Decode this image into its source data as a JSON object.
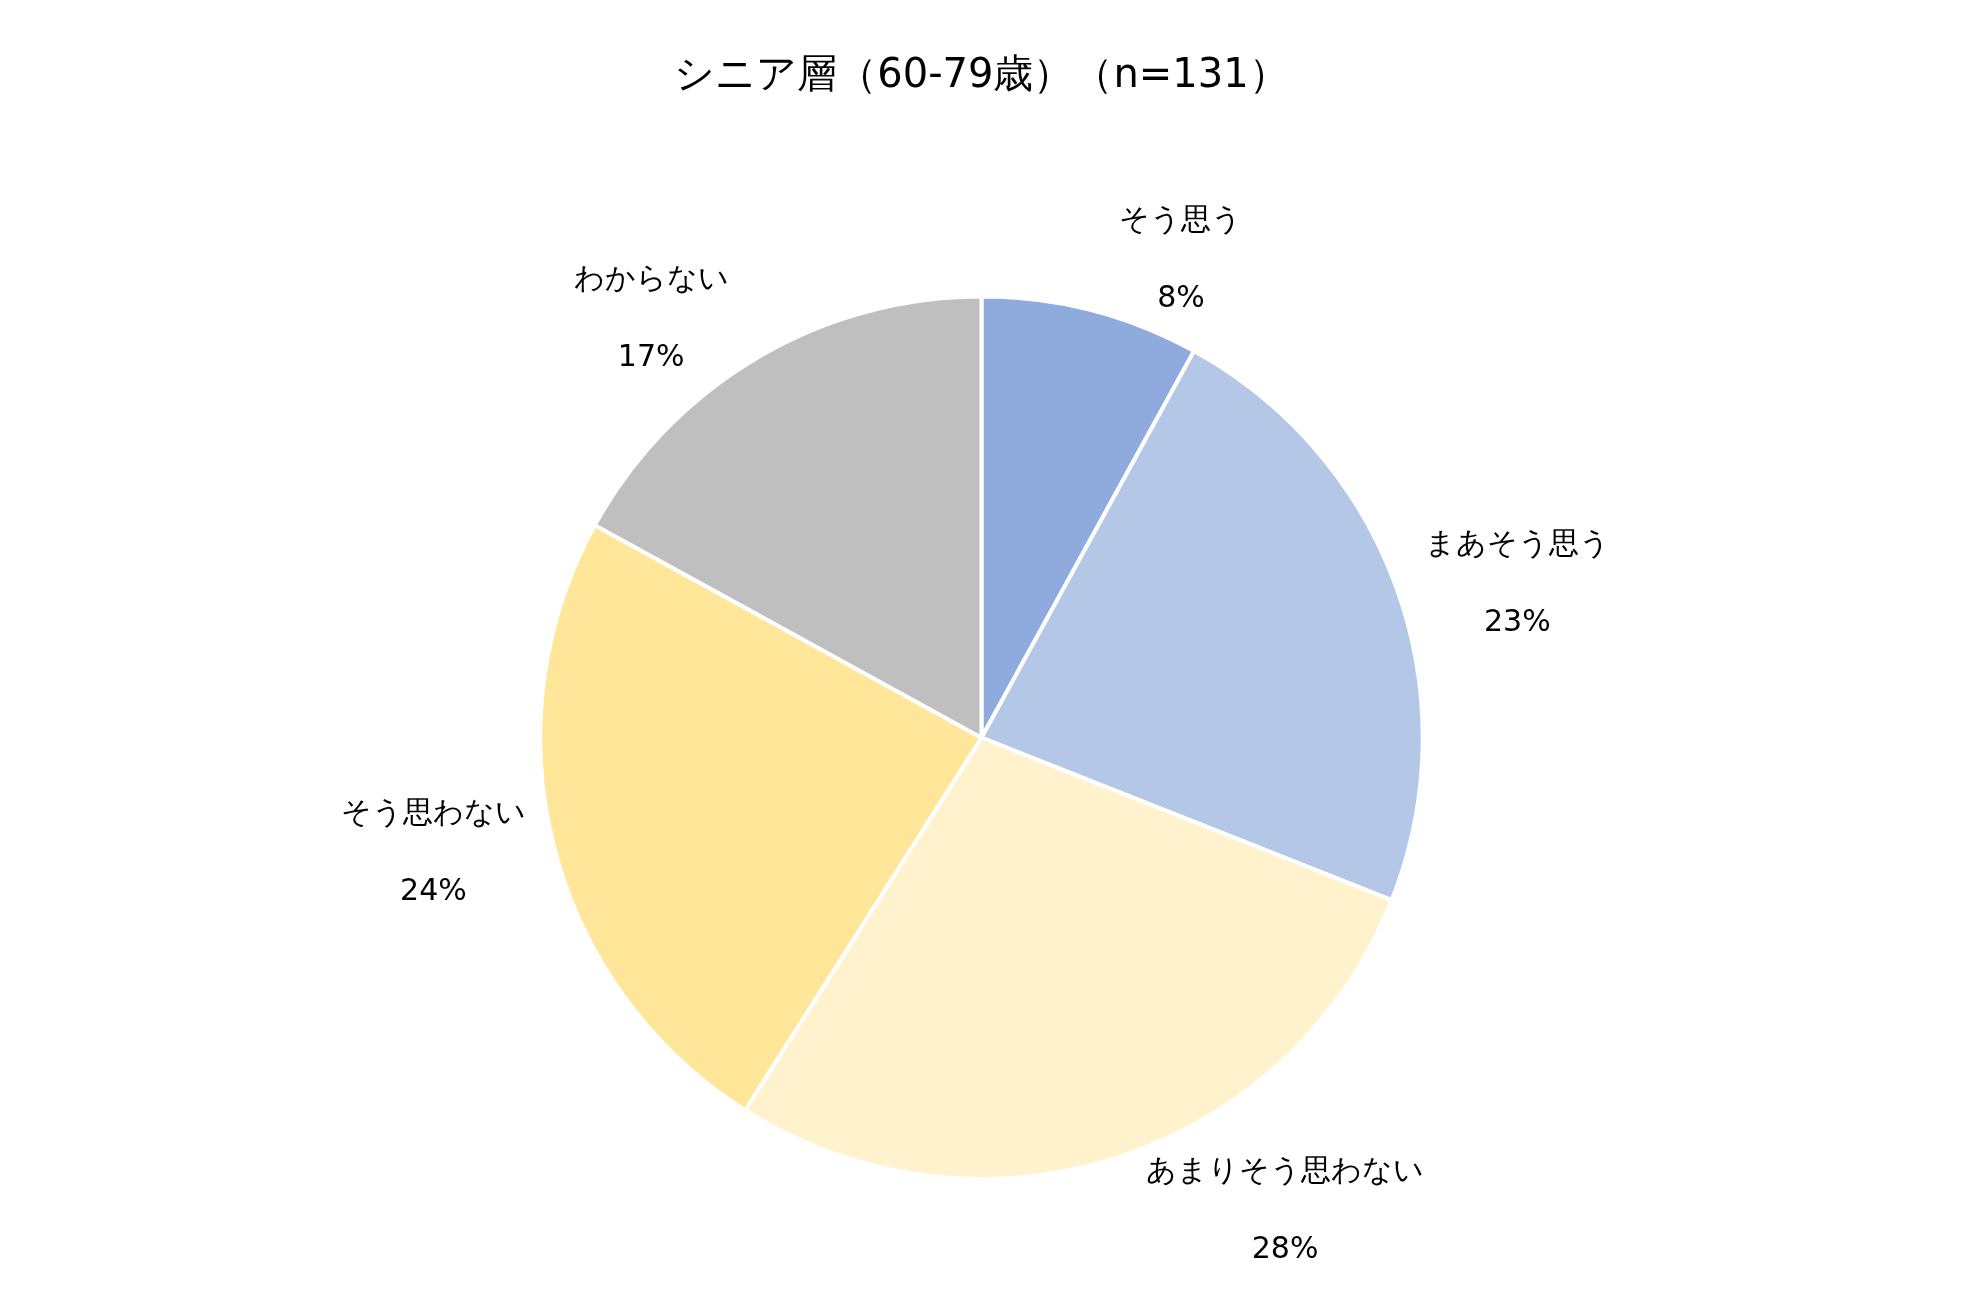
{
  "chart_data": {
    "type": "pie",
    "title": "シニア層（60-79歳）（n=131）",
    "categories": [
      "そう思う",
      "まあそう思う",
      "あまりそう思わない",
      "そう思わない",
      "わからない"
    ],
    "values": [
      8,
      23,
      28,
      24,
      17
    ],
    "value_labels": [
      "8%",
      "23%",
      "28%",
      "24%",
      "17%"
    ],
    "colors": [
      "#8faadc",
      "#b4c7e7",
      "#fff2cc",
      "#ffe699",
      "#bfbfbf"
    ],
    "legend": false
  }
}
